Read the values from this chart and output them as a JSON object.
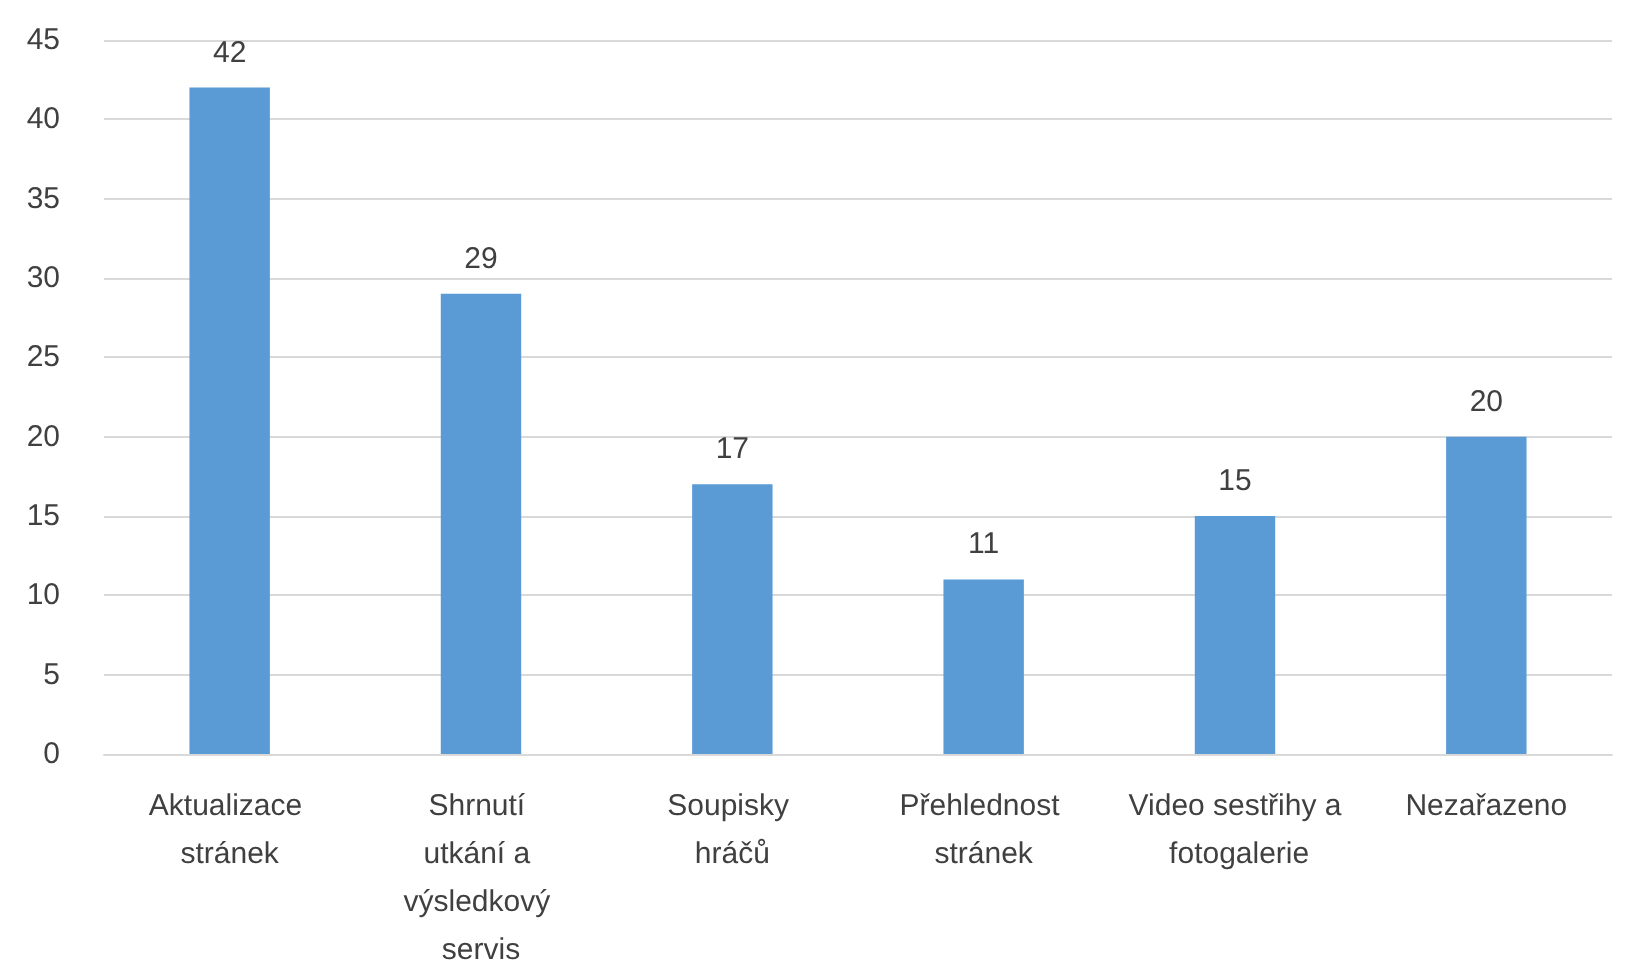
{
  "chart_data": {
    "type": "bar",
    "categories": [
      "Aktualizace stránek",
      "Shrnutí utkání a výsledkový servis",
      "Soupisky hráčů",
      "Přehlednost stránek",
      "Video sestřihy a fotogalerie",
      "Nezařazeno"
    ],
    "values": [
      42,
      29,
      17,
      11,
      15,
      20
    ],
    "color": "#5b9bd5",
    "ylim": [
      0,
      45
    ],
    "yticks": [
      0,
      5,
      10,
      15,
      20,
      25,
      30,
      35,
      40,
      45
    ],
    "grid": "y",
    "data_labels": true
  }
}
